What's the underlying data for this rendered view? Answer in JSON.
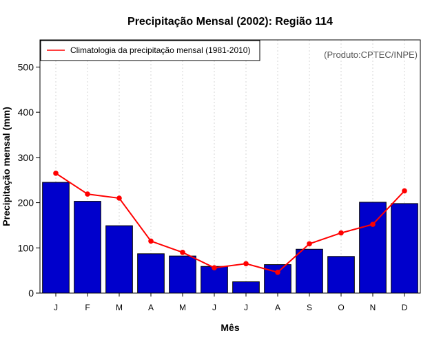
{
  "chart_data": {
    "type": "bar",
    "title": "Precipitação Mensal (2002): Região 114",
    "xlabel": "Mês",
    "ylabel": "Precipitação mensal (mm)",
    "ylim": [
      0,
      560
    ],
    "yticks": [
      0,
      100,
      200,
      300,
      400,
      500
    ],
    "categories": [
      "J",
      "F",
      "M",
      "A",
      "M",
      "J",
      "J",
      "A",
      "S",
      "O",
      "N",
      "D"
    ],
    "series": [
      {
        "name": "Precipitação mensal 2002",
        "type": "bar",
        "color": "#0000cc",
        "values": [
          245,
          203,
          149,
          87,
          82,
          59,
          25,
          63,
          97,
          81,
          201,
          198
        ]
      },
      {
        "name": "Climatologia da precipitação mensal (1981-2010)",
        "type": "line",
        "color": "#ff0000",
        "values": [
          265,
          219,
          210,
          115,
          90,
          56,
          65,
          46,
          109,
          133,
          152,
          226
        ]
      }
    ],
    "legend": {
      "position": "top-left",
      "label": "Climatologia da precipitação mensal (1981-2010)"
    },
    "grid": "vertical dotted",
    "annotation": "(Produto:CPTEC/INPE)"
  }
}
